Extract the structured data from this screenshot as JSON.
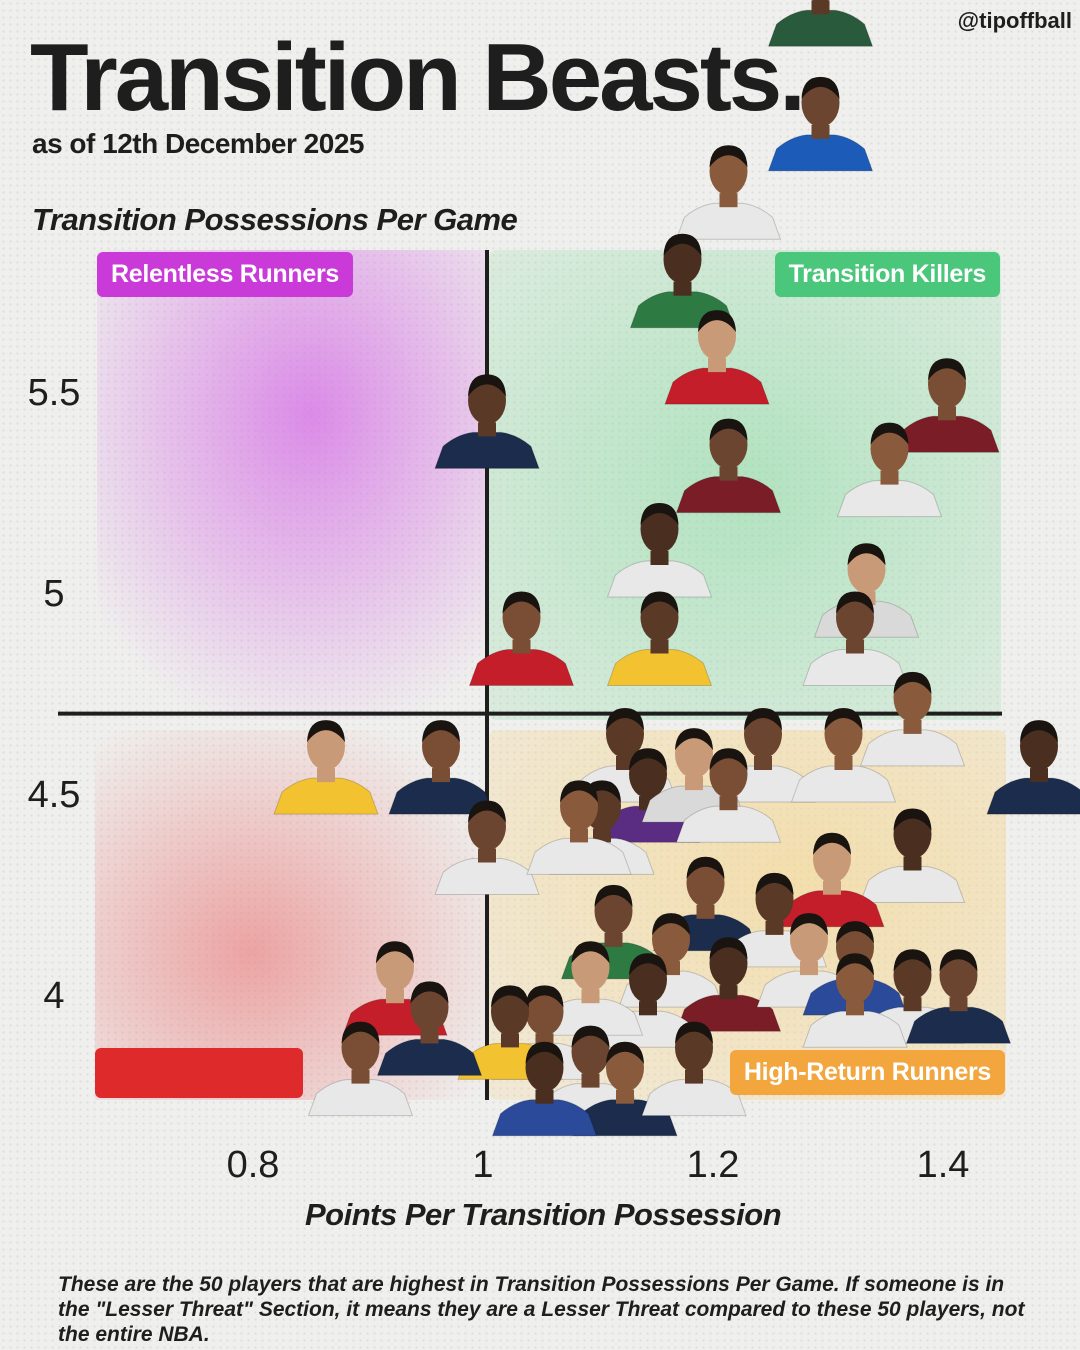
{
  "handle": "@tipoffball",
  "title": "Transition Beasts.",
  "subtitle": "as of 12th December 2025",
  "footnote": "These are the 50 players that are highest in Transition Possessions Per Game. If someone is in the \"Lesser Threat\" Section, it means they are a Lesser Threat compared to these 50 players, not the entire NBA.",
  "quadrants": [
    {
      "key": "top_left",
      "label": "Relentless Runners",
      "color": "#c93ad9"
    },
    {
      "key": "top_right",
      "label": "Transition Killers",
      "color": "#4ac77a"
    },
    {
      "key": "bottom_left",
      "label": "",
      "color": "#de2a2a"
    },
    {
      "key": "bottom_right",
      "label": "High-Return Runners",
      "color": "#f2a63d"
    }
  ],
  "colors": {
    "axis": "#1e1e1e",
    "background": "#efefed",
    "text": "#1e1e1e"
  },
  "chart_data": {
    "type": "scatter",
    "title": "Transition Beasts.",
    "xlabel": "Points Per Transition Possession",
    "ylabel": "Transition Possessions Per Game",
    "xlim": [
      0.7,
      1.42
    ],
    "ylim": [
      3.8,
      6.2
    ],
    "xticks": [
      0.8,
      1,
      1.2,
      1.4
    ],
    "yticks": [
      4,
      4.5,
      5,
      5.5
    ],
    "x_divider": 1.0,
    "y_divider": 4.7,
    "grid": false,
    "marker": "player headshot",
    "points": [
      {
        "x": 1.29,
        "y": 6.36,
        "jersey": "#2a5a3c"
      },
      {
        "x": 1.29,
        "y": 6.05,
        "jersey": "#1d5bb8"
      },
      {
        "x": 1.21,
        "y": 5.88,
        "jersey": "#e8e8e8"
      },
      {
        "x": 1.17,
        "y": 5.66,
        "jersey": "#2d7a43"
      },
      {
        "x": 1.2,
        "y": 5.47,
        "jersey": "#c41e2a"
      },
      {
        "x": 1.4,
        "y": 5.35,
        "jersey": "#7a1d26"
      },
      {
        "x": 1.0,
        "y": 5.31,
        "jersey": "#1b2c4c"
      },
      {
        "x": 1.21,
        "y": 5.2,
        "jersey": "#7a1d26"
      },
      {
        "x": 1.35,
        "y": 5.19,
        "jersey": "#e8e8e8"
      },
      {
        "x": 1.15,
        "y": 4.99,
        "jersey": "#e8e8e8"
      },
      {
        "x": 1.33,
        "y": 4.89,
        "jersey": "#d9d9d9"
      },
      {
        "x": 1.03,
        "y": 4.77,
        "jersey": "#c41e2a"
      },
      {
        "x": 1.15,
        "y": 4.77,
        "jersey": "#f2c230"
      },
      {
        "x": 1.32,
        "y": 4.77,
        "jersey": "#e8e8e8"
      },
      {
        "x": 1.37,
        "y": 4.57,
        "jersey": "#e8e8e8"
      },
      {
        "x": 1.48,
        "y": 4.45,
        "jersey": "#1b2c4c"
      },
      {
        "x": 0.86,
        "y": 4.45,
        "jersey": "#f2c230"
      },
      {
        "x": 0.96,
        "y": 4.45,
        "jersey": "#1b2c4c"
      },
      {
        "x": 1.12,
        "y": 4.48,
        "jersey": "#e8e8e8"
      },
      {
        "x": 1.24,
        "y": 4.48,
        "jersey": "#e8e8e8"
      },
      {
        "x": 1.31,
        "y": 4.48,
        "jersey": "#e8e8e8"
      },
      {
        "x": 1.14,
        "y": 4.38,
        "jersey": "#5a2d82"
      },
      {
        "x": 1.18,
        "y": 4.43,
        "jersey": "#d9d9d9"
      },
      {
        "x": 1.21,
        "y": 4.38,
        "jersey": "#e8e8e8"
      },
      {
        "x": 1.1,
        "y": 4.3,
        "jersey": "#e8e8e8"
      },
      {
        "x": 1.0,
        "y": 4.25,
        "jersey": "#e8e8e8"
      },
      {
        "x": 1.08,
        "y": 4.3,
        "jersey": "#e8e8e8"
      },
      {
        "x": 1.37,
        "y": 4.23,
        "jersey": "#e8e8e8"
      },
      {
        "x": 1.3,
        "y": 4.17,
        "jersey": "#c41e2a"
      },
      {
        "x": 1.19,
        "y": 4.11,
        "jersey": "#1b2c4c"
      },
      {
        "x": 1.25,
        "y": 4.07,
        "jersey": "#e8e8e8"
      },
      {
        "x": 1.11,
        "y": 4.04,
        "jersey": "#2d7a43"
      },
      {
        "x": 1.16,
        "y": 3.97,
        "jersey": "#e8e8e8"
      },
      {
        "x": 1.21,
        "y": 3.91,
        "jersey": "#7a1d26"
      },
      {
        "x": 1.28,
        "y": 3.97,
        "jersey": "#e8e8e8"
      },
      {
        "x": 1.32,
        "y": 3.95,
        "jersey": "#2b4a9a"
      },
      {
        "x": 1.37,
        "y": 3.88,
        "jersey": "#e8e8e8"
      },
      {
        "x": 1.41,
        "y": 3.88,
        "jersey": "#1b2c4c"
      },
      {
        "x": 1.32,
        "y": 3.87,
        "jersey": "#e8e8e8"
      },
      {
        "x": 1.14,
        "y": 3.87,
        "jersey": "#e8e8e8"
      },
      {
        "x": 1.09,
        "y": 3.9,
        "jersey": "#e8e8e8"
      },
      {
        "x": 1.05,
        "y": 3.79,
        "jersey": "#e8e8e8"
      },
      {
        "x": 1.02,
        "y": 3.79,
        "jersey": "#f2c230"
      },
      {
        "x": 1.09,
        "y": 3.69,
        "jersey": "#e8e8e8"
      },
      {
        "x": 1.12,
        "y": 3.65,
        "jersey": "#1b2c4c"
      },
      {
        "x": 1.05,
        "y": 3.65,
        "jersey": "#2b4a9a"
      },
      {
        "x": 0.92,
        "y": 3.9,
        "jersey": "#c41e2a"
      },
      {
        "x": 0.89,
        "y": 3.7,
        "jersey": "#e8e8e8"
      },
      {
        "x": 1.18,
        "y": 3.7,
        "jersey": "#e8e8e8"
      },
      {
        "x": 0.95,
        "y": 3.8,
        "jersey": "#1b2c4c"
      }
    ]
  }
}
